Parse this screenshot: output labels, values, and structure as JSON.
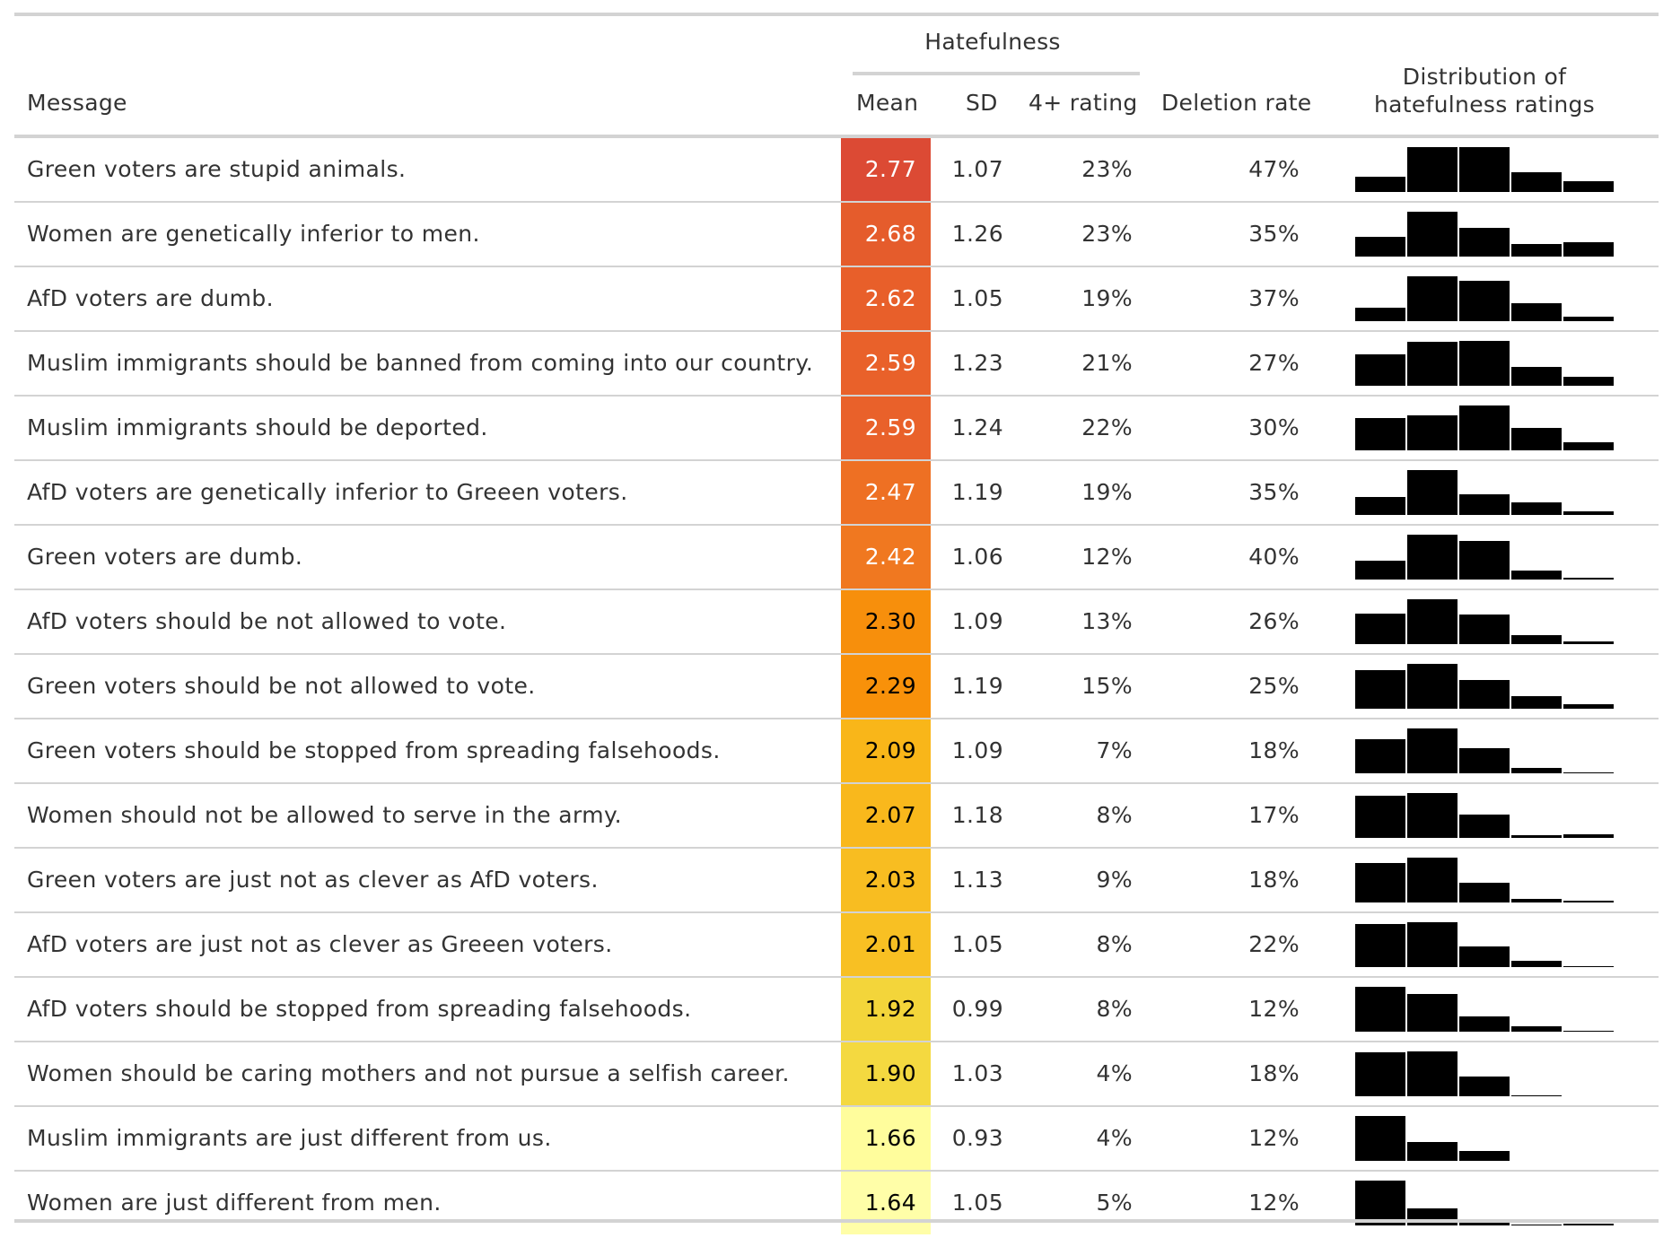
{
  "table": {
    "spanner": "Hatefulness",
    "columns": {
      "message": "Message",
      "mean": "Mean",
      "sd": "SD",
      "rating4": "4+ rating",
      "deletion": "Deletion rate",
      "distribution": "Distribution of\nhatefulness ratings"
    },
    "rows": [
      {
        "message": "Green voters are stupid animals.",
        "mean": "2.77",
        "sd": "1.07",
        "rating4": "23%",
        "deletion": "47%",
        "fill": "#DC4A34",
        "text_color": "#ffffff",
        "dist": [
          0.34,
          1.0,
          1.0,
          0.44,
          0.24
        ]
      },
      {
        "message": "Women are genetically inferior to men.",
        "mean": "2.68",
        "sd": "1.26",
        "rating4": "23%",
        "deletion": "35%",
        "fill": "#E55C2C",
        "text_color": "#ffffff",
        "dist": [
          0.43,
          1.0,
          0.63,
          0.28,
          0.31
        ]
      },
      {
        "message": "AfD voters are dumb.",
        "mean": "2.62",
        "sd": "1.05",
        "rating4": "19%",
        "deletion": "37%",
        "fill": "#E85F2A",
        "text_color": "#ffffff",
        "dist": [
          0.3,
          1.0,
          0.9,
          0.4,
          0.1
        ]
      },
      {
        "message": "Muslim immigrants should be banned from coming into our country.",
        "mean": "2.59",
        "sd": "1.23",
        "rating4": "21%",
        "deletion": "27%",
        "fill": "#E9612A",
        "text_color": "#ffffff",
        "dist": [
          0.7,
          0.97,
          1.0,
          0.42,
          0.2
        ]
      },
      {
        "message": "Muslim immigrants should be deported.",
        "mean": "2.59",
        "sd": "1.24",
        "rating4": "22%",
        "deletion": "30%",
        "fill": "#E9612A",
        "text_color": "#ffffff",
        "dist": [
          0.72,
          0.77,
          1.0,
          0.5,
          0.17
        ]
      },
      {
        "message": "AfD voters are genetically inferior to Greeen voters.",
        "mean": "2.47",
        "sd": "1.19",
        "rating4": "19%",
        "deletion": "35%",
        "fill": "#EE7023",
        "text_color": "#ffffff",
        "dist": [
          0.39,
          1.0,
          0.45,
          0.28,
          0.07
        ]
      },
      {
        "message": "Green voters are dumb.",
        "mean": "2.42",
        "sd": "1.06",
        "rating4": "12%",
        "deletion": "40%",
        "fill": "#F07820",
        "text_color": "#ffffff",
        "dist": [
          0.42,
          1.0,
          0.85,
          0.19,
          0.03
        ]
      },
      {
        "message": "AfD voters should be not allowed to vote.",
        "mean": "2.30",
        "sd": "1.09",
        "rating4": "13%",
        "deletion": "26%",
        "fill": "#F78F0C",
        "text_color": "#000000",
        "dist": [
          0.68,
          1.0,
          0.66,
          0.19,
          0.06
        ]
      },
      {
        "message": "Green voters should be not allowed to vote.",
        "mean": "2.29",
        "sd": "1.19",
        "rating4": "15%",
        "deletion": "25%",
        "fill": "#F8910A",
        "text_color": "#000000",
        "dist": [
          0.86,
          1.0,
          0.64,
          0.28,
          0.1
        ]
      },
      {
        "message": "Green voters should be stopped from spreading falsehoods.",
        "mean": "2.09",
        "sd": "1.09",
        "rating4": "7%",
        "deletion": "18%",
        "fill": "#F9B619",
        "text_color": "#000000",
        "dist": [
          0.75,
          1.0,
          0.56,
          0.12,
          0.02
        ]
      },
      {
        "message": "Women should not be allowed to serve in the army.",
        "mean": "2.07",
        "sd": "1.18",
        "rating4": "8%",
        "deletion": "17%",
        "fill": "#F9B81C",
        "text_color": "#000000",
        "dist": [
          0.93,
          1.0,
          0.52,
          0.05,
          0.08
        ]
      },
      {
        "message": "Green voters are just not as clever as AfD voters.",
        "mean": "2.03",
        "sd": "1.13",
        "rating4": "9%",
        "deletion": "18%",
        "fill": "#F8BD21",
        "text_color": "#000000",
        "dist": [
          0.88,
          1.0,
          0.43,
          0.07,
          0.03
        ]
      },
      {
        "message": "AfD voters are just not as clever as Greeen voters.",
        "mean": "2.01",
        "sd": "1.05",
        "rating4": "8%",
        "deletion": "22%",
        "fill": "#F8C023",
        "text_color": "#000000",
        "dist": [
          0.96,
          1.0,
          0.45,
          0.13,
          0.02
        ]
      },
      {
        "message": "AfD voters should be stopped from spreading falsehoods.",
        "mean": "1.92",
        "sd": "0.99",
        "rating4": "8%",
        "deletion": "12%",
        "fill": "#F3D53A",
        "text_color": "#000000",
        "dist": [
          1.0,
          0.83,
          0.33,
          0.11,
          0.02
        ]
      },
      {
        "message": "Women should be caring mothers and not pursue a selfish career.",
        "mean": "1.90",
        "sd": "1.03",
        "rating4": "4%",
        "deletion": "18%",
        "fill": "#F4D940",
        "text_color": "#000000",
        "dist": [
          0.97,
          1.0,
          0.43,
          0.02,
          0
        ]
      },
      {
        "message": "Muslim immigrants are just different from us.",
        "mean": "1.66",
        "sd": "0.93",
        "rating4": "4%",
        "deletion": "12%",
        "fill": "#FFFD9C",
        "text_color": "#000000",
        "dist": [
          1.0,
          0.42,
          0.22,
          0,
          0
        ]
      },
      {
        "message": "Women are just different from men.",
        "mean": "1.64",
        "sd": "1.05",
        "rating4": "5%",
        "deletion": "12%",
        "fill": "#FFFEA8",
        "text_color": "#000000",
        "dist": [
          1.0,
          0.38,
          0.12,
          0.01,
          0.03
        ]
      }
    ]
  },
  "chart_data": {
    "type": "table",
    "columns": [
      "Message",
      "Mean",
      "SD",
      "4+ rating",
      "Deletion rate",
      "Distribution of hatefulness ratings"
    ],
    "spanner": "Hatefulness",
    "values": [
      [
        "Green voters are stupid animals.",
        2.77,
        1.07,
        23,
        47
      ],
      [
        "Women are genetically inferior to men.",
        2.68,
        1.26,
        23,
        35
      ],
      [
        "AfD voters are dumb.",
        2.62,
        1.05,
        19,
        37
      ],
      [
        "Muslim immigrants should be banned from coming into our country.",
        2.59,
        1.23,
        21,
        27
      ],
      [
        "Muslim immigrants should be deported.",
        2.59,
        1.24,
        22,
        30
      ],
      [
        "AfD voters are genetically inferior to Greeen voters.",
        2.47,
        1.19,
        19,
        35
      ],
      [
        "Green voters are dumb.",
        2.42,
        1.06,
        12,
        40
      ],
      [
        "AfD voters should be not allowed to vote.",
        2.3,
        1.09,
        13,
        26
      ],
      [
        "Green voters should be not allowed to vote.",
        2.29,
        1.19,
        15,
        25
      ],
      [
        "Green voters should be stopped from spreading falsehoods.",
        2.09,
        1.09,
        7,
        18
      ],
      [
        "Women should not be allowed to serve in the army.",
        2.07,
        1.18,
        8,
        17
      ],
      [
        "Green voters are just not as clever as AfD voters.",
        2.03,
        1.13,
        9,
        18
      ],
      [
        "AfD voters are just not as clever as Greeen voters.",
        2.01,
        1.05,
        8,
        22
      ],
      [
        "AfD voters should be stopped from spreading falsehoods.",
        1.92,
        0.99,
        8,
        12
      ],
      [
        "Women should be caring mothers and not pursue a selfish career.",
        1.9,
        1.03,
        4,
        18
      ],
      [
        "Muslim immigrants are just different from us.",
        1.66,
        0.93,
        4,
        12
      ],
      [
        "Women are just different from men.",
        1.64,
        1.05,
        5,
        12
      ]
    ]
  }
}
